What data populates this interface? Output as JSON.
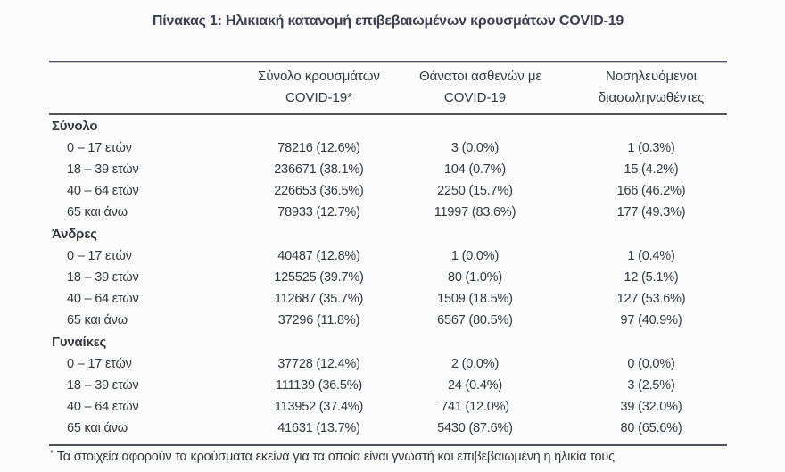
{
  "page": {
    "title": "Πίνακας 1: Ηλικιακή κατανομή επιβεβαιωμένων κρουσμάτων COVID-19"
  },
  "table": {
    "columns": [
      {
        "line1": "",
        "line2": ""
      },
      {
        "line1": "Σύνολο κρουσμάτων",
        "line2": "COVID-19*"
      },
      {
        "line1": "Θάνατοι ασθενών με",
        "line2": "COVID-19"
      },
      {
        "line1": "Νοσηλευόμενοι",
        "line2": "διασωληνωθέντες"
      }
    ],
    "sections": [
      {
        "label": "Σύνολο",
        "rows": [
          {
            "age": "0 – 17 ετών",
            "cases": "78216 (12.6%)",
            "deaths": "3 (0.0%)",
            "intubated": "1 (0.3%)"
          },
          {
            "age": "18 – 39 ετών",
            "cases": "236671 (38.1%)",
            "deaths": "104 (0.7%)",
            "intubated": "15 (4.2%)"
          },
          {
            "age": "40 – 64 ετών",
            "cases": "226653 (36.5%)",
            "deaths": "2250 (15.7%)",
            "intubated": "166 (46.2%)"
          },
          {
            "age": "65 και άνω",
            "cases": "78933 (12.7%)",
            "deaths": "11997 (83.6%)",
            "intubated": "177 (49.3%)"
          }
        ]
      },
      {
        "label": "Άνδρες",
        "rows": [
          {
            "age": "0 – 17 ετών",
            "cases": "40487 (12.8%)",
            "deaths": "1 (0.0%)",
            "intubated": "1 (0.4%)"
          },
          {
            "age": "18 – 39 ετών",
            "cases": "125525 (39.7%)",
            "deaths": "80 (1.0%)",
            "intubated": "12 (5.1%)"
          },
          {
            "age": "40 – 64 ετών",
            "cases": "112687 (35.7%)",
            "deaths": "1509 (18.5%)",
            "intubated": "127 (53.6%)"
          },
          {
            "age": "65 και άνω",
            "cases": "37296 (11.8%)",
            "deaths": "6567 (80.5%)",
            "intubated": "97 (40.9%)"
          }
        ]
      },
      {
        "label": "Γυναίκες",
        "rows": [
          {
            "age": "0 – 17 ετών",
            "cases": "37728 (12.4%)",
            "deaths": "2 (0.0%)",
            "intubated": "0 (0.0%)"
          },
          {
            "age": "18 – 39 ετών",
            "cases": "111139 (36.5%)",
            "deaths": "24 (0.4%)",
            "intubated": "3 (2.5%)"
          },
          {
            "age": "40 – 64 ετών",
            "cases": "113952 (37.4%)",
            "deaths": "741 (12.0%)",
            "intubated": "39 (32.0%)"
          },
          {
            "age": "65 και άνω",
            "cases": "41631 (13.7%)",
            "deaths": "5430 (87.6%)",
            "intubated": "80 (65.6%)"
          }
        ]
      }
    ],
    "footnote_marker": "*",
    "footnote": "Τα στοιχεία αφορούν τα κρούσματα εκείνα για τα οποία είναι γνωστή και επιβεβαιωμένη η ηλικία τους"
  }
}
